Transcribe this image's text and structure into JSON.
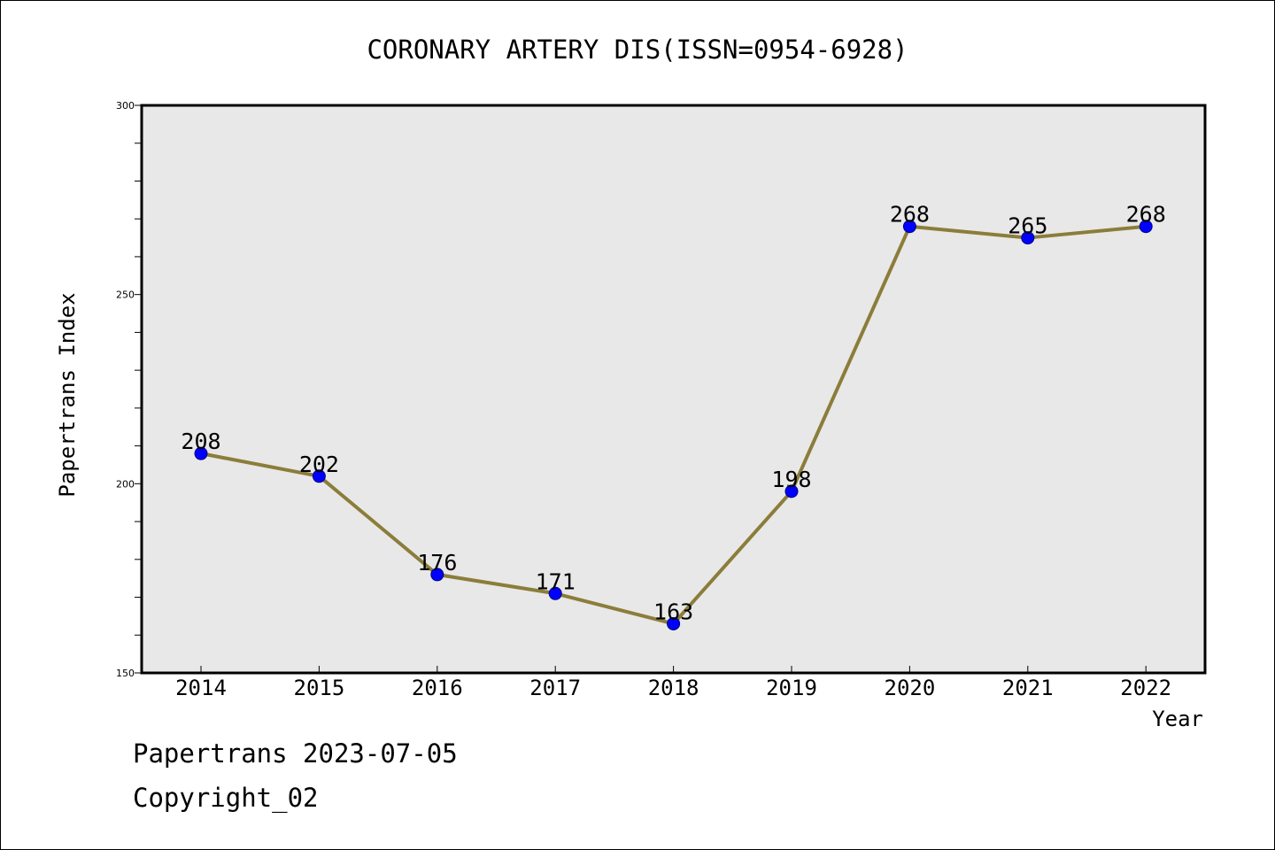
{
  "chart_data": {
    "type": "line",
    "title": "CORONARY ARTERY DIS(ISSN=0954-6928)",
    "xlabel": "Year",
    "ylabel": "Papertrans Index",
    "categories": [
      "2014",
      "2015",
      "2016",
      "2017",
      "2018",
      "2019",
      "2020",
      "2021",
      "2022"
    ],
    "series": [
      {
        "values": [
          208,
          202,
          176,
          171,
          163,
          198,
          268,
          265,
          268
        ],
        "line_color": "#8b7d3a",
        "marker_color": "#0000ff"
      }
    ],
    "ylim": [
      150,
      300
    ],
    "yticks": [
      150,
      200,
      250,
      300
    ],
    "grid": false,
    "background_color": "#e8e8e8",
    "data_labels": true
  },
  "footer": {
    "date_text": "Papertrans 2023-07-05",
    "copyright_text": "Copyright_02"
  }
}
